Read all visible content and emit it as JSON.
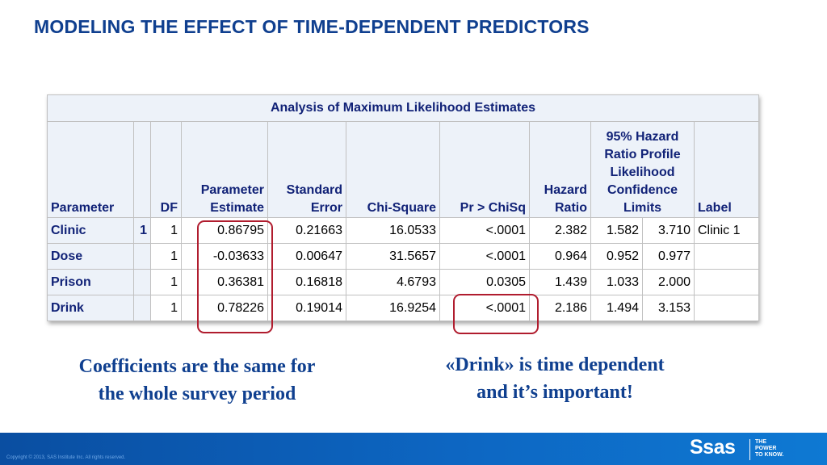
{
  "slide": {
    "title": "MODELING THE EFFECT OF TIME-DEPENDENT PREDICTORS"
  },
  "table": {
    "caption": "Analysis of Maximum Likelihood Estimates",
    "headers": {
      "parameter": "Parameter",
      "df": "DF",
      "estimate": [
        "Parameter",
        "Estimate"
      ],
      "std_error": [
        "Standard",
        "Error"
      ],
      "chisq": "Chi-Square",
      "p": "Pr > ChiSq",
      "hazard": [
        "Hazard",
        "Ratio"
      ],
      "ci": [
        "95% Hazard",
        "Ratio Profile",
        "Likelihood",
        "Confidence",
        "Limits"
      ],
      "label": "Label"
    },
    "rows": [
      {
        "parameter": "Clinic",
        "class": "1",
        "df": "1",
        "estimate": "0.86795",
        "std_error": "0.21663",
        "chisq": "16.0533",
        "p": "<.0001",
        "hazard": "2.382",
        "ci_low": "1.582",
        "ci_high": "3.710",
        "label": "Clinic 1"
      },
      {
        "parameter": "Dose",
        "class": "",
        "df": "1",
        "estimate": "-0.03633",
        "std_error": "0.00647",
        "chisq": "31.5657",
        "p": "<.0001",
        "hazard": "0.964",
        "ci_low": "0.952",
        "ci_high": "0.977",
        "label": ""
      },
      {
        "parameter": "Prison",
        "class": "",
        "df": "1",
        "estimate": "0.36381",
        "std_error": "0.16818",
        "chisq": "4.6793",
        "p": "0.0305",
        "hazard": "1.439",
        "ci_low": "1.033",
        "ci_high": "2.000",
        "label": ""
      },
      {
        "parameter": "Drink",
        "class": "",
        "df": "1",
        "estimate": "0.78226",
        "std_error": "0.19014",
        "chisq": "16.9254",
        "p": "<.0001",
        "hazard": "2.186",
        "ci_low": "1.494",
        "ci_high": "3.153",
        "label": ""
      }
    ]
  },
  "notes": {
    "left": [
      "Coefficients are the same for",
      "the whole survey period"
    ],
    "right": [
      "«Drink» is time dependent",
      "and it’s important!"
    ]
  },
  "footer": {
    "copyright": "Copyright © 2013, SAS Institute Inc. All rights reserved.",
    "logo": "Ssas",
    "tagline": [
      "THE",
      "POWER",
      "TO KNOW."
    ]
  },
  "colors": {
    "title": "#0f3f8f",
    "header_text": "#112277",
    "highlight": "#b01c2e",
    "footer": "#0d66c2"
  }
}
